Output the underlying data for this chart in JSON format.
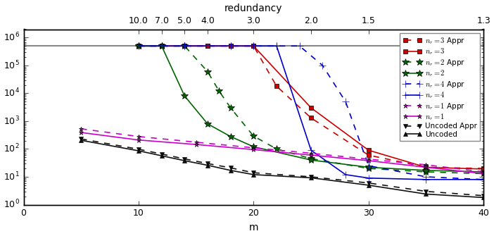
{
  "xlabel": "m",
  "xlim": [
    0,
    40
  ],
  "ylim": [
    1,
    2000000
  ],
  "top_axis_label": "redundancy",
  "hline_y": 500000,
  "hline_color": "#888888",
  "nr3_sim_x": [
    10,
    12,
    14,
    16,
    18,
    20,
    25,
    30,
    35,
    40
  ],
  "nr3_sim_y": [
    500000,
    500000,
    500000,
    500000,
    500000,
    500000,
    3000,
    90,
    22,
    19
  ],
  "nr3_appr_x": [
    10,
    12,
    14,
    16,
    18,
    20,
    22,
    25,
    30,
    35,
    40
  ],
  "nr3_appr_y": [
    500000,
    500000,
    500000,
    500000,
    500000,
    500000,
    18000,
    1300,
    60,
    22,
    20
  ],
  "nr2_sim_x": [
    10,
    12,
    14,
    16,
    18,
    20,
    25,
    30,
    35,
    40
  ],
  "nr2_sim_y": [
    500000,
    500000,
    8000,
    800,
    280,
    120,
    40,
    22,
    17,
    15
  ],
  "nr2_appr_x": [
    10,
    12,
    14,
    16,
    17,
    18,
    20,
    22,
    25,
    30,
    35,
    40
  ],
  "nr2_appr_y": [
    500000,
    500000,
    500000,
    60000,
    12000,
    3000,
    290,
    100,
    45,
    20,
    15,
    13
  ],
  "nr4_sim_x": [
    10,
    14,
    18,
    20,
    22,
    25,
    28,
    30,
    35,
    40
  ],
  "nr4_sim_y": [
    500000,
    500000,
    500000,
    500000,
    500000,
    90,
    12,
    9,
    8,
    8
  ],
  "nr4_appr_x": [
    10,
    14,
    18,
    20,
    22,
    24,
    26,
    28,
    30,
    35,
    40
  ],
  "nr4_appr_y": [
    500000,
    500000,
    500000,
    500000,
    500000,
    500000,
    100000,
    5000,
    25,
    10,
    8
  ],
  "nr1_sim_x": [
    5,
    10,
    15,
    20,
    25,
    30,
    35,
    40
  ],
  "nr1_sim_y": [
    390,
    210,
    145,
    95,
    60,
    38,
    22,
    13
  ],
  "nr1_appr_x": [
    5,
    10,
    15,
    20,
    25,
    30,
    35,
    40
  ],
  "nr1_appr_y": [
    530,
    280,
    175,
    110,
    70,
    43,
    27,
    15
  ],
  "uncoded_sim_x": [
    5,
    10,
    12,
    14,
    16,
    18,
    20,
    25,
    30,
    35,
    40
  ],
  "uncoded_sim_y": [
    205,
    86,
    57,
    38,
    26,
    17,
    12,
    9.2,
    5,
    2.4,
    1.8
  ],
  "uncoded_appr_x": [
    5,
    10,
    12,
    14,
    16,
    18,
    20,
    25,
    30,
    35,
    40
  ],
  "uncoded_appr_y": [
    230,
    98,
    66,
    44,
    30,
    21,
    14,
    10,
    6,
    3,
    2.1
  ],
  "color_nr3": "#cc0000",
  "color_nr2": "#006600",
  "color_nr4": "#0000cc",
  "color_nr1": "#cc00cc",
  "color_uncoded": "#111111",
  "color_hline": "#888888",
  "top_m": [
    10,
    12,
    14,
    16,
    20,
    25,
    30,
    40
  ],
  "top_labels": [
    "10.0",
    "7.0",
    "5.0",
    "4.0",
    "3.0",
    "2.0",
    "1.5",
    "1.3"
  ]
}
